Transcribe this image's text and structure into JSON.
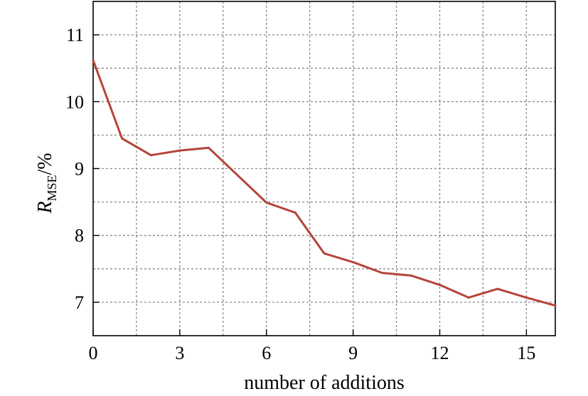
{
  "chart_data": {
    "type": "line",
    "x": [
      0,
      1,
      2,
      3,
      4,
      5,
      6,
      7,
      8,
      9,
      10,
      11,
      12,
      13,
      14,
      15,
      16
    ],
    "series": [
      {
        "values": [
          10.62,
          9.45,
          9.2,
          9.27,
          9.31,
          8.9,
          8.49,
          8.34,
          7.73,
          7.6,
          7.44,
          7.4,
          7.26,
          7.07,
          7.2,
          7.07,
          6.95
        ],
        "color": "#b5443a"
      }
    ],
    "xlim": [
      0,
      16
    ],
    "ylim": [
      6.5,
      11.5
    ],
    "xticks": [
      0,
      3,
      6,
      9,
      12,
      15
    ],
    "yticks": [
      7,
      8,
      9,
      10,
      11
    ],
    "xlabel": "number of additions",
    "ylabel": {
      "main": "R",
      "sub": "MSE",
      "suffix": "/%"
    },
    "grid": true,
    "legend": "none"
  }
}
